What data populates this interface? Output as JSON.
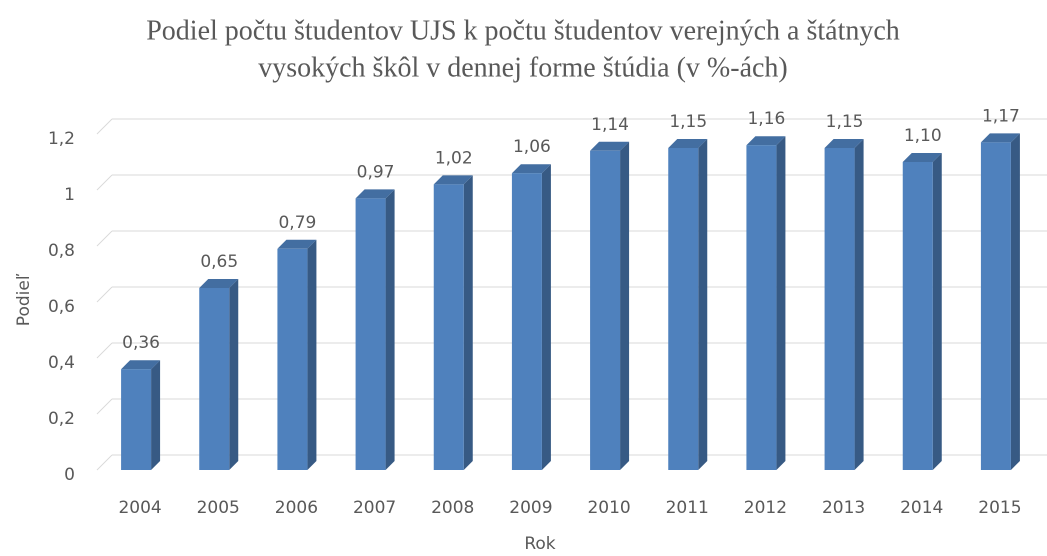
{
  "chart_data": {
    "type": "bar3d",
    "title": [
      "Podiel počtu študentov UJS k počtu študentov verejných a štátnych",
      "vysokých škôl v dennej forme štúdia (v %-ách)"
    ],
    "x_label": "Rok",
    "y_label": "Podieľ",
    "categories": [
      "2004",
      "2005",
      "2006",
      "2007",
      "2008",
      "2009",
      "2010",
      "2011",
      "2012",
      "2013",
      "2014",
      "2015"
    ],
    "values": [
      0.36,
      0.65,
      0.79,
      0.97,
      1.02,
      1.06,
      1.14,
      1.15,
      1.16,
      1.15,
      1.1,
      1.17
    ],
    "value_labels": [
      "0,36",
      "0,65",
      "0,79",
      "0,97",
      "1,02",
      "1,06",
      "1,14",
      "1,15",
      "1,16",
      "1,15",
      "1,10",
      "1,17"
    ],
    "color": "#4f81bd",
    "ylim": [
      0,
      1.2
    ],
    "yticks": [
      0,
      {
        "value": 0.2,
        "label": "0,2"
      },
      {
        "value": 0.4,
        "label": "0,4"
      },
      {
        "value": 0.6,
        "label": "0,6"
      },
      {
        "value": 0.8,
        "label": "0,8"
      },
      1,
      {
        "value": 1.2,
        "label": "1,2"
      }
    ],
    "grid": true
  }
}
